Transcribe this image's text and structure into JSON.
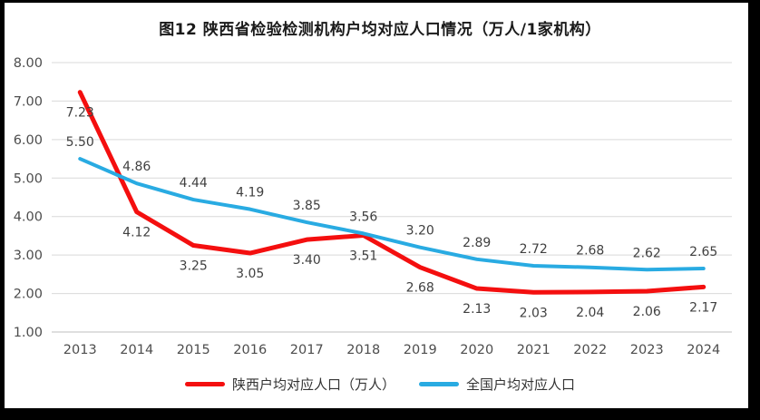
{
  "title": "图12 陕西省检验检测机构户均对应人口情况（万人/1家机构）",
  "chart_data": {
    "type": "line",
    "categories": [
      "2013",
      "2014",
      "2015",
      "2016",
      "2017",
      "2018",
      "2019",
      "2020",
      "2021",
      "2022",
      "2023",
      "2024"
    ],
    "series": [
      {
        "name": "陕西户均对应人口（万人）",
        "color": "#F40F0F",
        "values": [
          7.23,
          4.12,
          3.25,
          3.05,
          3.4,
          3.51,
          2.68,
          2.13,
          2.03,
          2.04,
          2.06,
          2.17
        ],
        "label_position": "below"
      },
      {
        "name": "全国户均对应人口",
        "color": "#29ABE2",
        "values": [
          5.5,
          4.86,
          4.44,
          4.19,
          3.85,
          3.56,
          3.2,
          2.89,
          2.72,
          2.68,
          2.62,
          2.65
        ],
        "label_position": "above"
      }
    ],
    "ylim": [
      1.0,
      8.0
    ],
    "yticks": [
      "1.00",
      "2.00",
      "3.00",
      "4.00",
      "5.00",
      "6.00",
      "7.00",
      "8.00"
    ],
    "xlabel": "",
    "ylabel": "",
    "grid": true,
    "legend_position": "bottom",
    "gridline_color": "#D9D9D9",
    "baseline_color": "#BFBFBF",
    "tick_label_color": "#4D4D4D",
    "data_label_color": "#404040"
  }
}
